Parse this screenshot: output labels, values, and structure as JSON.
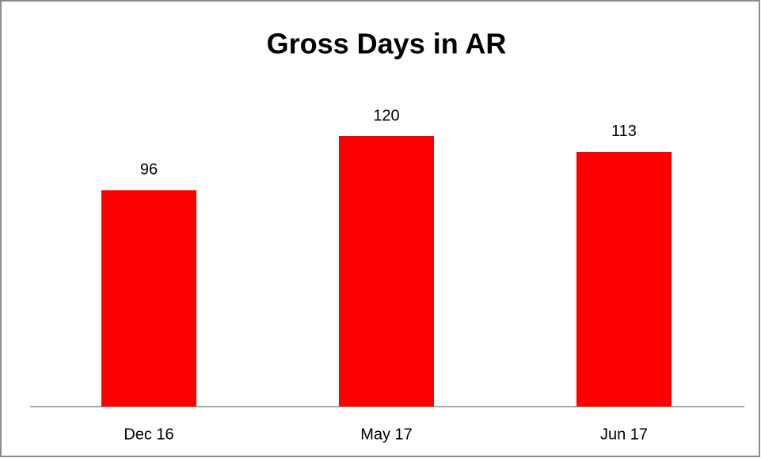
{
  "chart_data": {
    "type": "bar",
    "title": "Gross Days in AR",
    "categories": [
      "Dec 16",
      "May 17",
      "Jun 17"
    ],
    "values": [
      96,
      120,
      113
    ],
    "color": "#ff0000"
  }
}
